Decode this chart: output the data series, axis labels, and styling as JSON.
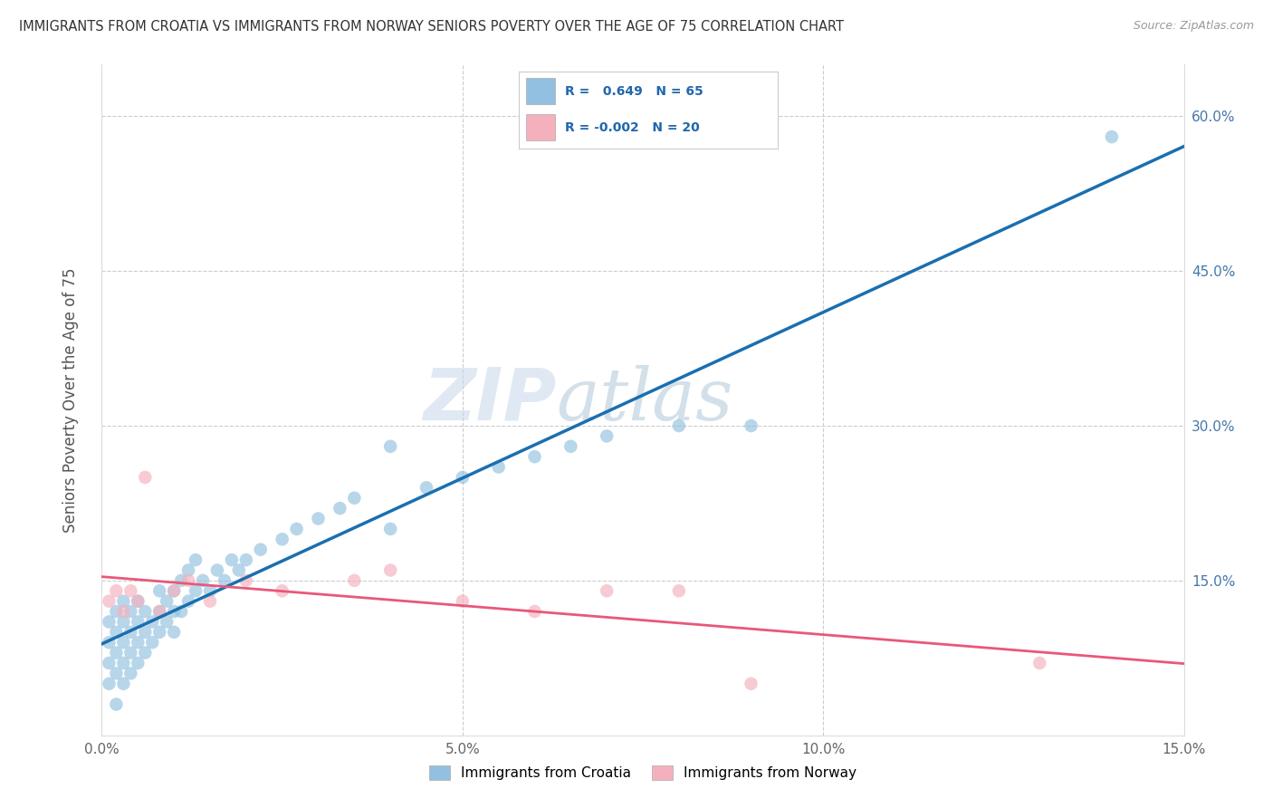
{
  "title": "IMMIGRANTS FROM CROATIA VS IMMIGRANTS FROM NORWAY SENIORS POVERTY OVER THE AGE OF 75 CORRELATION CHART",
  "source": "Source: ZipAtlas.com",
  "ylabel": "Seniors Poverty Over the Age of 75",
  "xlim": [
    0,
    0.15
  ],
  "ylim": [
    0,
    0.65
  ],
  "xticks": [
    0.0,
    0.05,
    0.1,
    0.15
  ],
  "xtick_labels": [
    "0.0%",
    "5.0%",
    "10.0%",
    "15.0%"
  ],
  "yticks": [
    0.0,
    0.15,
    0.3,
    0.45,
    0.6
  ],
  "left_ytick_labels": [
    "",
    "",
    "",
    "",
    ""
  ],
  "right_ytick_labels": [
    "",
    "15.0%",
    "30.0%",
    "45.0%",
    "60.0%"
  ],
  "croatia_color": "#92c0e0",
  "norway_color": "#f4b0bc",
  "croatia_line_color": "#1a6faf",
  "norway_line_color": "#e8587a",
  "croatia_R": 0.649,
  "croatia_N": 65,
  "norway_R": -0.002,
  "norway_N": 20,
  "watermark_zip": "ZIP",
  "watermark_atlas": "atlas",
  "background_color": "#ffffff",
  "grid_color": "#cccccc",
  "legend_text_color": "#2166ac",
  "croatia_x": [
    0.001,
    0.001,
    0.001,
    0.001,
    0.002,
    0.002,
    0.002,
    0.002,
    0.002,
    0.003,
    0.003,
    0.003,
    0.003,
    0.003,
    0.004,
    0.004,
    0.004,
    0.004,
    0.005,
    0.005,
    0.005,
    0.005,
    0.006,
    0.006,
    0.006,
    0.007,
    0.007,
    0.008,
    0.008,
    0.008,
    0.009,
    0.009,
    0.01,
    0.01,
    0.01,
    0.011,
    0.011,
    0.012,
    0.012,
    0.013,
    0.013,
    0.014,
    0.015,
    0.016,
    0.017,
    0.018,
    0.019,
    0.02,
    0.022,
    0.025,
    0.027,
    0.03,
    0.033,
    0.035,
    0.04,
    0.04,
    0.045,
    0.05,
    0.055,
    0.06,
    0.065,
    0.07,
    0.08,
    0.09,
    0.14
  ],
  "croatia_y": [
    0.05,
    0.07,
    0.09,
    0.11,
    0.06,
    0.08,
    0.1,
    0.12,
    0.03,
    0.07,
    0.09,
    0.11,
    0.13,
    0.05,
    0.08,
    0.1,
    0.12,
    0.06,
    0.09,
    0.11,
    0.13,
    0.07,
    0.1,
    0.12,
    0.08,
    0.11,
    0.09,
    0.1,
    0.12,
    0.14,
    0.11,
    0.13,
    0.1,
    0.12,
    0.14,
    0.12,
    0.15,
    0.13,
    0.16,
    0.14,
    0.17,
    0.15,
    0.14,
    0.16,
    0.15,
    0.17,
    0.16,
    0.17,
    0.18,
    0.19,
    0.2,
    0.21,
    0.22,
    0.23,
    0.2,
    0.28,
    0.24,
    0.25,
    0.26,
    0.27,
    0.28,
    0.29,
    0.3,
    0.3,
    0.58
  ],
  "norway_x": [
    0.001,
    0.002,
    0.003,
    0.004,
    0.005,
    0.006,
    0.008,
    0.01,
    0.012,
    0.015,
    0.02,
    0.025,
    0.035,
    0.04,
    0.05,
    0.06,
    0.07,
    0.08,
    0.09,
    0.13
  ],
  "norway_y": [
    0.13,
    0.14,
    0.12,
    0.14,
    0.13,
    0.25,
    0.12,
    0.14,
    0.15,
    0.13,
    0.15,
    0.14,
    0.15,
    0.16,
    0.13,
    0.12,
    0.14,
    0.14,
    0.05,
    0.07
  ]
}
